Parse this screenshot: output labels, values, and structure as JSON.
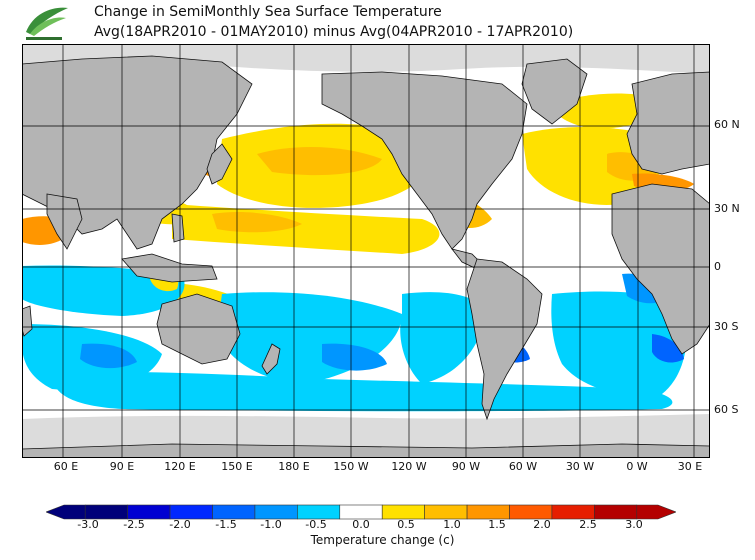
{
  "header": {
    "title_line1": "Change in SemiMonthly Sea Surface Temperature",
    "title_line2": "Avg(18APR2010 - 01MAY2010) minus Avg(04APR2010 - 17APR2010)"
  },
  "map": {
    "longitude_labels": [
      "60 E",
      "90 E",
      "120 E",
      "150 E",
      "180 E",
      "150 W",
      "120 W",
      "90 W",
      "60 W",
      "30 W",
      "0 W",
      "30 E"
    ],
    "latitude_labels": [
      "60 N",
      "30 N",
      "0",
      "30 S",
      "60 S"
    ],
    "colors": {
      "ocean_background": "#ffffff",
      "land": "#b4b4b4",
      "sea_ice": "#dcdcdc",
      "gridlines": "#000000"
    },
    "colorbar": {
      "tick_labels": [
        "-3.0",
        "-2.5",
        "-2.0",
        "-1.5",
        "-1.0",
        "-0.5",
        "0.0",
        "0.5",
        "1.0",
        "1.5",
        "2.0",
        "2.5",
        "3.0"
      ],
      "bin_colors": [
        "#00007a",
        "#0000d2",
        "#0028ff",
        "#0064ff",
        "#0096ff",
        "#00d2ff",
        "#ffffff",
        "#ffe100",
        "#ffbe00",
        "#ff9600",
        "#ff5a00",
        "#e61e00",
        "#b40000"
      ],
      "caption": "Temperature change  (c)"
    }
  }
}
